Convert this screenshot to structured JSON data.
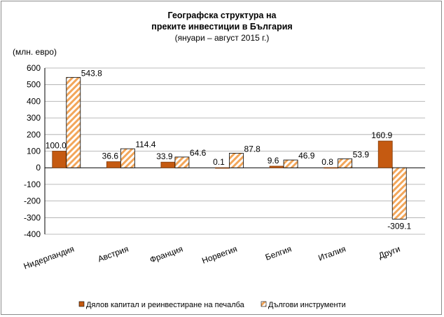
{
  "chart_data": {
    "type": "bar",
    "title_lines": [
      "Географска структура на",
      "преките инвестиции в България"
    ],
    "subtitle": "(януари – август 2015 г.)",
    "ylabel": "(млн. евро)",
    "ylim": [
      -400,
      600
    ],
    "yticks": [
      600,
      500,
      400,
      300,
      200,
      100,
      0,
      -100,
      -200,
      -300,
      -400
    ],
    "grid": true,
    "legend_position": "bottom",
    "categories": [
      "Нидерландия",
      "Австрия",
      "Франция",
      "Норвегия",
      "Белгия",
      "Италия",
      "Други"
    ],
    "series": [
      {
        "name": "Дялов капитал и реинвестиране на печалба",
        "color": "#c55a11",
        "pattern": "solid",
        "values": [
          100.0,
          36.6,
          33.9,
          0.1,
          9.6,
          0.8,
          160.9
        ],
        "labels": [
          "100.0",
          "36.6",
          "33.9",
          "0.1",
          "9.6",
          "0.8",
          "160.9"
        ]
      },
      {
        "name": "Дългови инструменти",
        "color": "#f4b183",
        "pattern": "hatched",
        "values": [
          543.8,
          114.4,
          64.6,
          87.8,
          46.9,
          53.9,
          -309.1
        ],
        "labels": [
          "543.8",
          "114.4",
          "64.6",
          "87.8",
          "46.9",
          "53.9",
          "-309.1"
        ]
      }
    ]
  }
}
